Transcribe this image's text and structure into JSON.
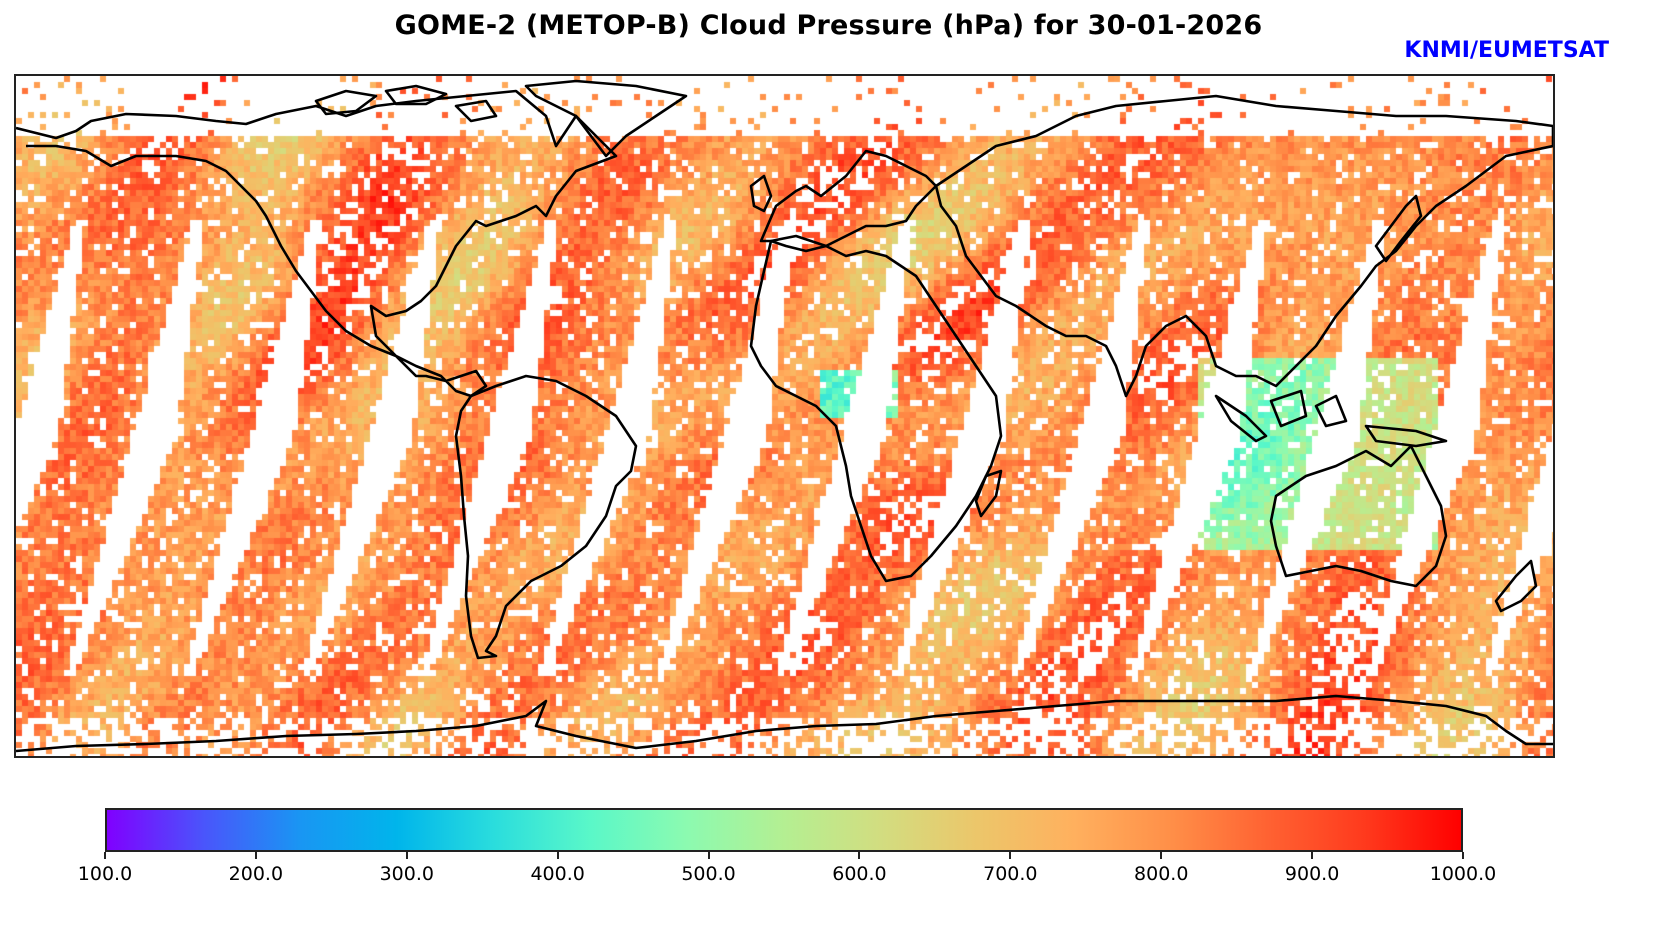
{
  "header": {
    "title": "GOME-2 (METOP-B) Cloud Pressure (hPa) for 30-01-2026",
    "credit": "KNMI/EUMETSAT",
    "credit_color": "#0000ff"
  },
  "map": {
    "projection": "plate-carree",
    "variable": "cloud pressure",
    "units": "hPa",
    "missing_color": "#ffffff",
    "coastline_color": "#000000",
    "swath_gaps": 13
  },
  "colorbar": {
    "min": 100.0,
    "max": 1000.0,
    "colormap": "rainbow",
    "stops": [
      "#8000ff",
      "#4a55fb",
      "#1996f3",
      "#00b5eb",
      "#2adddd",
      "#5af8c8",
      "#8cfab0",
      "#b4ef92",
      "#d2dd80",
      "#ecc66a",
      "#ffb05e",
      "#ff8f48",
      "#ff6232",
      "#ff3a1d",
      "#ff0000"
    ],
    "ticks": [
      "100.0",
      "200.0",
      "300.0",
      "400.0",
      "500.0",
      "600.0",
      "700.0",
      "800.0",
      "900.0",
      "1000.0"
    ],
    "tick_values": [
      100,
      200,
      300,
      400,
      500,
      600,
      700,
      800,
      900,
      1000
    ]
  }
}
